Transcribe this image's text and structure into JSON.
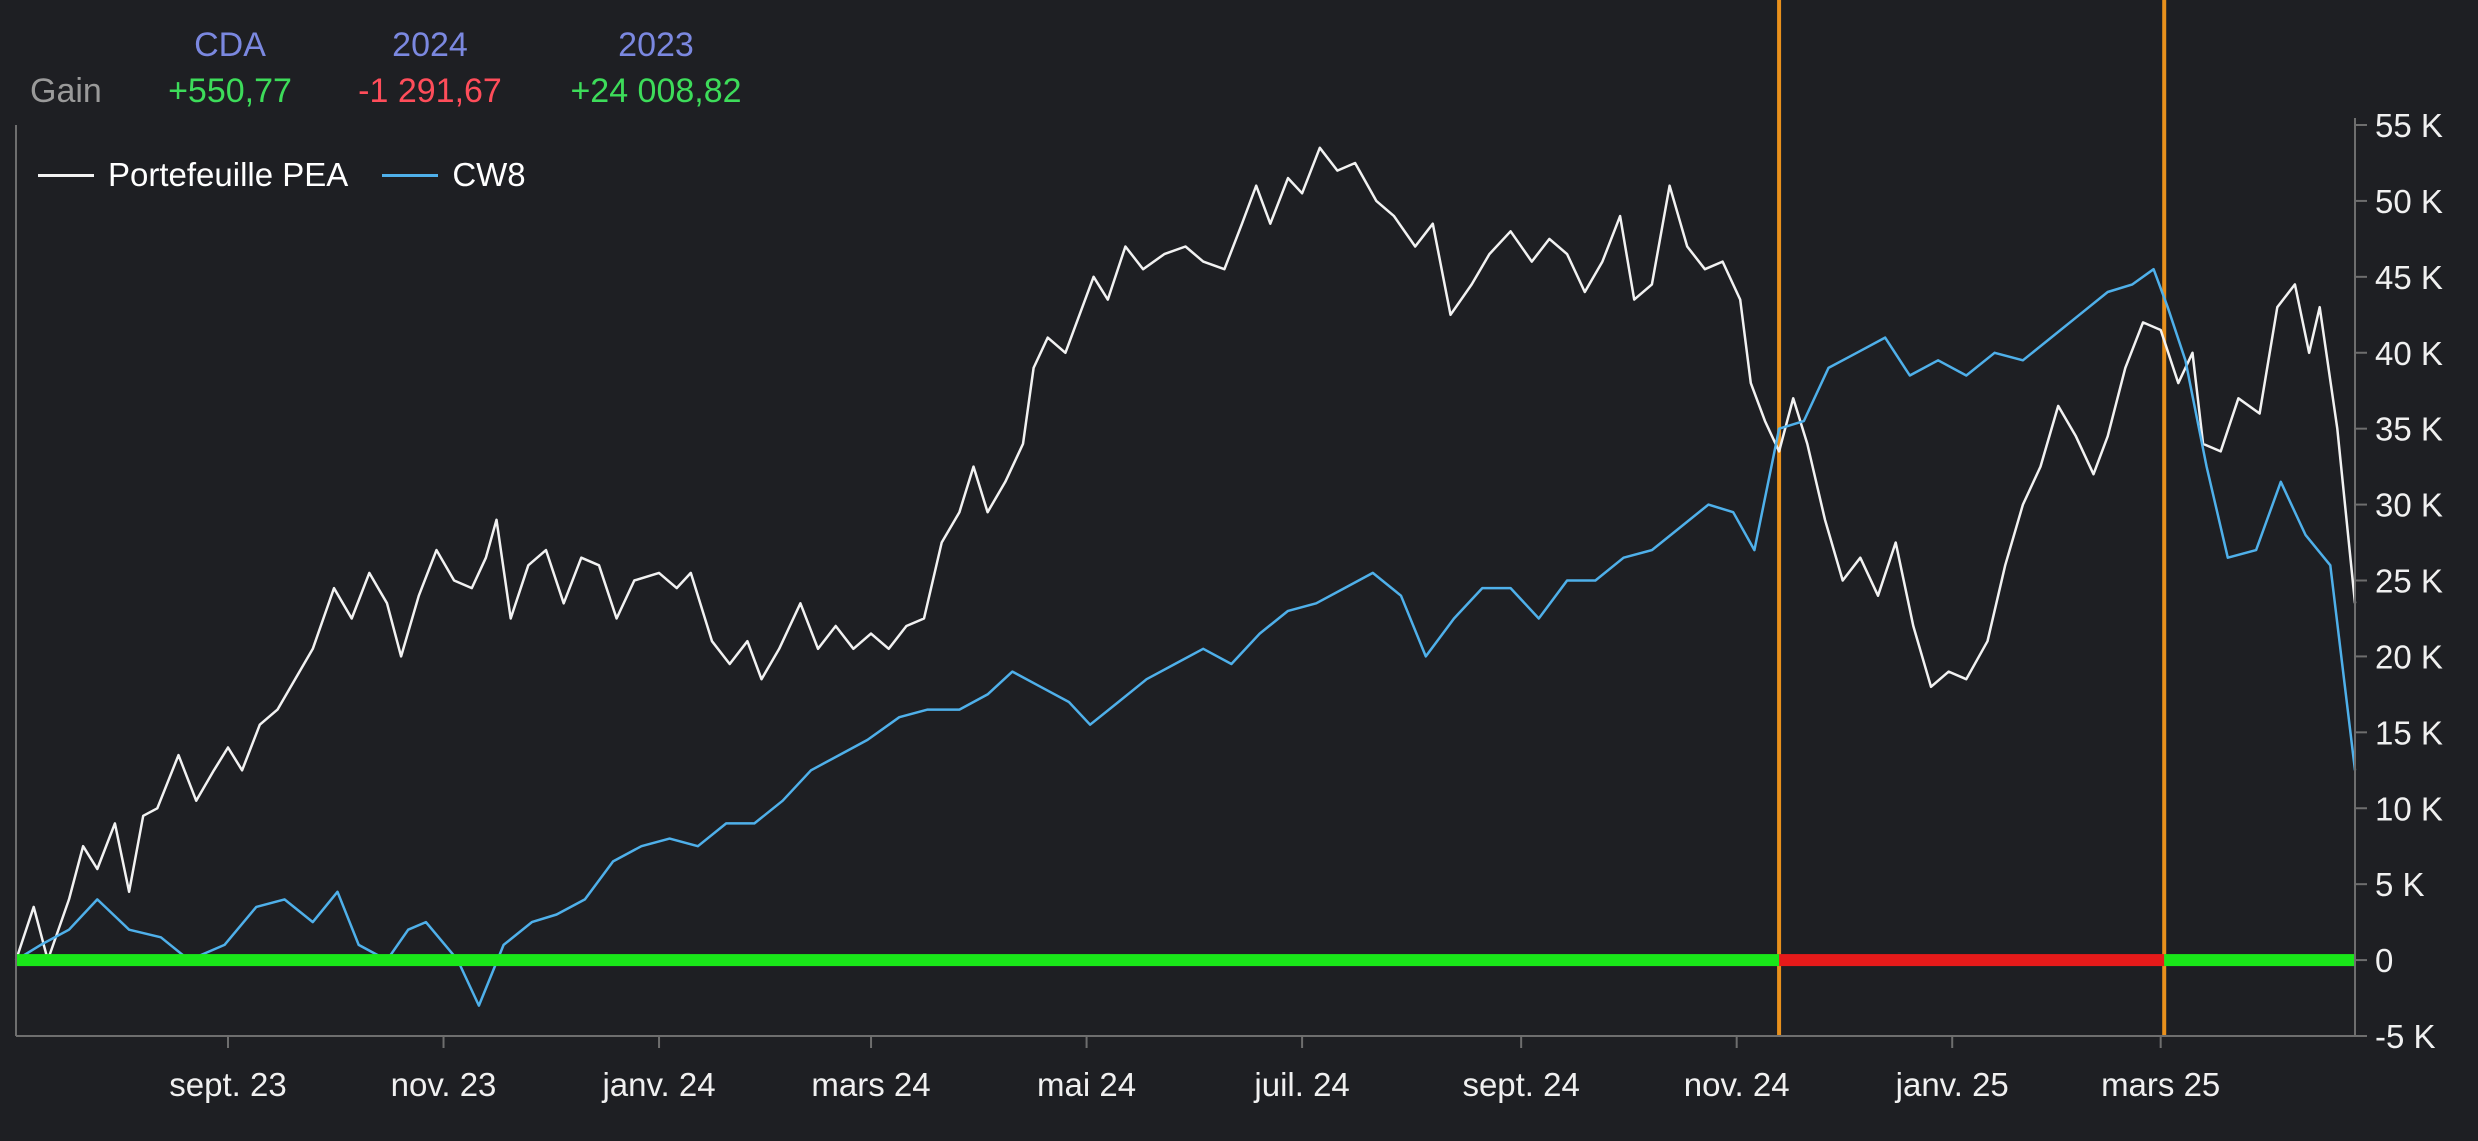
{
  "gain_summary": {
    "row_label": "Gain",
    "columns": [
      {
        "title": "CDA",
        "value": "+550,77",
        "status": "positive"
      },
      {
        "title": "2024",
        "value": "-1 291,67",
        "status": "negative"
      },
      {
        "title": "2023",
        "value": "+24 008,82",
        "status": "positive"
      }
    ]
  },
  "colors": {
    "background": "#1e1f23",
    "header_title": "#7b88e0",
    "positive": "#3ddc5a",
    "negative": "#ff4d5a",
    "portfolio_line": "#f2f2f2",
    "benchmark_line": "#4fb0ea",
    "event_marker": "#e8901c",
    "gain_bar_positive": "#19e619",
    "gain_bar_negative": "#e61a1a",
    "axis": "#6e6e6e",
    "tick_label": "#f0f0f0"
  },
  "chart_data": {
    "type": "line",
    "title": "",
    "xlabel": "",
    "ylabel": "",
    "x_range": [
      "2023-07-03",
      "2025-04-25"
    ],
    "ylim": [
      -5000,
      55000
    ],
    "y_ticks": [
      {
        "value": -5000,
        "label": "-5 K"
      },
      {
        "value": 0,
        "label": "0"
      },
      {
        "value": 5000,
        "label": "5 K"
      },
      {
        "value": 10000,
        "label": "10 K"
      },
      {
        "value": 15000,
        "label": "15 K"
      },
      {
        "value": 20000,
        "label": "20 K"
      },
      {
        "value": 25000,
        "label": "25 K"
      },
      {
        "value": 30000,
        "label": "30 K"
      },
      {
        "value": 35000,
        "label": "35 K"
      },
      {
        "value": 40000,
        "label": "40 K"
      },
      {
        "value": 45000,
        "label": "45 K"
      },
      {
        "value": 50000,
        "label": "50 K"
      },
      {
        "value": 55000,
        "label": "55 K"
      }
    ],
    "x_ticks": [
      {
        "date": "2023-09-01",
        "label": "sept. 23"
      },
      {
        "date": "2023-11-01",
        "label": "nov. 23"
      },
      {
        "date": "2024-01-01",
        "label": "janv. 24"
      },
      {
        "date": "2024-03-01",
        "label": "mars 24"
      },
      {
        "date": "2024-05-01",
        "label": "mai 24"
      },
      {
        "date": "2024-07-01",
        "label": "juil. 24"
      },
      {
        "date": "2024-09-01",
        "label": "sept. 24"
      },
      {
        "date": "2024-11-01",
        "label": "nov. 24"
      },
      {
        "date": "2025-01-01",
        "label": "janv. 25"
      },
      {
        "date": "2025-03-01",
        "label": "mars 25"
      }
    ],
    "legend": {
      "position": "top-left"
    },
    "grid": false,
    "event_markers": [
      "2024-11-13",
      "2025-03-02"
    ],
    "gain_band": [
      {
        "from": "2023-07-03",
        "to": "2024-11-13",
        "status": "positive"
      },
      {
        "from": "2024-11-13",
        "to": "2025-03-02",
        "status": "negative"
      },
      {
        "from": "2025-03-02",
        "to": "2025-04-25",
        "status": "positive"
      }
    ],
    "series": [
      {
        "name": "Portefeuille PEA",
        "color": "#f2f2f2",
        "points": [
          [
            "2023-07-03",
            0
          ],
          [
            "2023-07-08",
            3500
          ],
          [
            "2023-07-12",
            0
          ],
          [
            "2023-07-18",
            4000
          ],
          [
            "2023-07-22",
            7500
          ],
          [
            "2023-07-26",
            6000
          ],
          [
            "2023-07-31",
            9000
          ],
          [
            "2023-08-04",
            4500
          ],
          [
            "2023-08-08",
            9500
          ],
          [
            "2023-08-12",
            10000
          ],
          [
            "2023-08-18",
            13500
          ],
          [
            "2023-08-23",
            10500
          ],
          [
            "2023-08-28",
            12500
          ],
          [
            "2023-09-01",
            14000
          ],
          [
            "2023-09-05",
            12500
          ],
          [
            "2023-09-10",
            15500
          ],
          [
            "2023-09-15",
            16500
          ],
          [
            "2023-09-20",
            18500
          ],
          [
            "2023-09-25",
            20500
          ],
          [
            "2023-10-01",
            24500
          ],
          [
            "2023-10-06",
            22500
          ],
          [
            "2023-10-11",
            25500
          ],
          [
            "2023-10-16",
            23500
          ],
          [
            "2023-10-20",
            20000
          ],
          [
            "2023-10-25",
            24000
          ],
          [
            "2023-10-30",
            27000
          ],
          [
            "2023-11-04",
            25000
          ],
          [
            "2023-11-09",
            24500
          ],
          [
            "2023-11-13",
            26500
          ],
          [
            "2023-11-16",
            29000
          ],
          [
            "2023-11-20",
            22500
          ],
          [
            "2023-11-25",
            26000
          ],
          [
            "2023-11-30",
            27000
          ],
          [
            "2023-12-05",
            23500
          ],
          [
            "2023-12-10",
            26500
          ],
          [
            "2023-12-15",
            26000
          ],
          [
            "2023-12-20",
            22500
          ],
          [
            "2023-12-25",
            25000
          ],
          [
            "2024-01-01",
            25500
          ],
          [
            "2024-01-06",
            24500
          ],
          [
            "2024-01-10",
            25500
          ],
          [
            "2024-01-16",
            21000
          ],
          [
            "2024-01-21",
            19500
          ],
          [
            "2024-01-26",
            21000
          ],
          [
            "2024-01-30",
            18500
          ],
          [
            "2024-02-04",
            20500
          ],
          [
            "2024-02-10",
            23500
          ],
          [
            "2024-02-15",
            20500
          ],
          [
            "2024-02-20",
            22000
          ],
          [
            "2024-02-25",
            20500
          ],
          [
            "2024-03-01",
            21500
          ],
          [
            "2024-03-06",
            20500
          ],
          [
            "2024-03-11",
            22000
          ],
          [
            "2024-03-16",
            22500
          ],
          [
            "2024-03-21",
            27500
          ],
          [
            "2024-03-26",
            29500
          ],
          [
            "2024-03-30",
            32500
          ],
          [
            "2024-04-03",
            29500
          ],
          [
            "2024-04-08",
            31500
          ],
          [
            "2024-04-13",
            34000
          ],
          [
            "2024-04-16",
            39000
          ],
          [
            "2024-04-20",
            41000
          ],
          [
            "2024-04-25",
            40000
          ],
          [
            "2024-04-29",
            42500
          ],
          [
            "2024-05-03",
            45000
          ],
          [
            "2024-05-07",
            43500
          ],
          [
            "2024-05-12",
            47000
          ],
          [
            "2024-05-17",
            45500
          ],
          [
            "2024-05-23",
            46500
          ],
          [
            "2024-05-29",
            47000
          ],
          [
            "2024-06-03",
            46000
          ],
          [
            "2024-06-09",
            45500
          ],
          [
            "2024-06-14",
            48500
          ],
          [
            "2024-06-18",
            51000
          ],
          [
            "2024-06-22",
            48500
          ],
          [
            "2024-06-27",
            51500
          ],
          [
            "2024-07-01",
            50500
          ],
          [
            "2024-07-06",
            53500
          ],
          [
            "2024-07-11",
            52000
          ],
          [
            "2024-07-16",
            52500
          ],
          [
            "2024-07-22",
            50000
          ],
          [
            "2024-07-27",
            49000
          ],
          [
            "2024-08-02",
            47000
          ],
          [
            "2024-08-07",
            48500
          ],
          [
            "2024-08-12",
            42500
          ],
          [
            "2024-08-18",
            44500
          ],
          [
            "2024-08-23",
            46500
          ],
          [
            "2024-08-29",
            48000
          ],
          [
            "2024-09-04",
            46000
          ],
          [
            "2024-09-09",
            47500
          ],
          [
            "2024-09-14",
            46500
          ],
          [
            "2024-09-19",
            44000
          ],
          [
            "2024-09-24",
            46000
          ],
          [
            "2024-09-29",
            49000
          ],
          [
            "2024-10-03",
            43500
          ],
          [
            "2024-10-08",
            44500
          ],
          [
            "2024-10-13",
            51000
          ],
          [
            "2024-10-18",
            47000
          ],
          [
            "2024-10-23",
            45500
          ],
          [
            "2024-10-28",
            46000
          ],
          [
            "2024-11-02",
            43500
          ],
          [
            "2024-11-05",
            38000
          ],
          [
            "2024-11-09",
            35500
          ],
          [
            "2024-11-13",
            33500
          ],
          [
            "2024-11-17",
            37000
          ],
          [
            "2024-11-21",
            34000
          ],
          [
            "2024-11-26",
            29000
          ],
          [
            "2024-12-01",
            25000
          ],
          [
            "2024-12-06",
            26500
          ],
          [
            "2024-12-11",
            24000
          ],
          [
            "2024-12-16",
            27500
          ],
          [
            "2024-12-21",
            22000
          ],
          [
            "2024-12-26",
            18000
          ],
          [
            "2024-12-31",
            19000
          ],
          [
            "2025-01-05",
            18500
          ],
          [
            "2025-01-11",
            21000
          ],
          [
            "2025-01-16",
            26000
          ],
          [
            "2025-01-21",
            30000
          ],
          [
            "2025-01-26",
            32500
          ],
          [
            "2025-01-31",
            36500
          ],
          [
            "2025-02-05",
            34500
          ],
          [
            "2025-02-10",
            32000
          ],
          [
            "2025-02-14",
            34500
          ],
          [
            "2025-02-19",
            39000
          ],
          [
            "2025-02-24",
            42000
          ],
          [
            "2025-03-01",
            41500
          ],
          [
            "2025-03-06",
            38000
          ],
          [
            "2025-03-10",
            40000
          ],
          [
            "2025-03-13",
            34000
          ],
          [
            "2025-03-18",
            33500
          ],
          [
            "2025-03-23",
            37000
          ],
          [
            "2025-03-29",
            36000
          ],
          [
            "2025-04-03",
            43000
          ],
          [
            "2025-04-08",
            44500
          ],
          [
            "2025-04-12",
            40000
          ],
          [
            "2025-04-15",
            43000
          ],
          [
            "2025-04-20",
            35000
          ],
          [
            "2025-04-25",
            23500
          ]
        ]
      },
      {
        "name": "CW8",
        "color": "#4fb0ea",
        "points": [
          [
            "2023-07-03",
            0
          ],
          [
            "2023-07-10",
            1000
          ],
          [
            "2023-07-18",
            2000
          ],
          [
            "2023-07-26",
            4000
          ],
          [
            "2023-08-04",
            2000
          ],
          [
            "2023-08-13",
            1500
          ],
          [
            "2023-08-21",
            0
          ],
          [
            "2023-08-31",
            1000
          ],
          [
            "2023-09-09",
            3500
          ],
          [
            "2023-09-17",
            4000
          ],
          [
            "2023-09-25",
            2500
          ],
          [
            "2023-10-02",
            4500
          ],
          [
            "2023-10-08",
            1000
          ],
          [
            "2023-10-16",
            0
          ],
          [
            "2023-10-22",
            2000
          ],
          [
            "2023-10-27",
            2500
          ],
          [
            "2023-11-05",
            0
          ],
          [
            "2023-11-11",
            -3000
          ],
          [
            "2023-11-18",
            1000
          ],
          [
            "2023-11-26",
            2500
          ],
          [
            "2023-12-03",
            3000
          ],
          [
            "2023-12-11",
            4000
          ],
          [
            "2023-12-19",
            6500
          ],
          [
            "2023-12-27",
            7500
          ],
          [
            "2024-01-04",
            8000
          ],
          [
            "2024-01-12",
            7500
          ],
          [
            "2024-01-20",
            9000
          ],
          [
            "2024-01-28",
            9000
          ],
          [
            "2024-02-05",
            10500
          ],
          [
            "2024-02-13",
            12500
          ],
          [
            "2024-02-21",
            13500
          ],
          [
            "2024-02-29",
            14500
          ],
          [
            "2024-03-09",
            16000
          ],
          [
            "2024-03-17",
            16500
          ],
          [
            "2024-03-26",
            16500
          ],
          [
            "2024-04-03",
            17500
          ],
          [
            "2024-04-10",
            19000
          ],
          [
            "2024-04-18",
            18000
          ],
          [
            "2024-04-26",
            17000
          ],
          [
            "2024-05-02",
            15500
          ],
          [
            "2024-05-10",
            17000
          ],
          [
            "2024-05-18",
            18500
          ],
          [
            "2024-05-26",
            19500
          ],
          [
            "2024-06-03",
            20500
          ],
          [
            "2024-06-11",
            19500
          ],
          [
            "2024-06-19",
            21500
          ],
          [
            "2024-06-27",
            23000
          ],
          [
            "2024-07-05",
            23500
          ],
          [
            "2024-07-13",
            24500
          ],
          [
            "2024-07-21",
            25500
          ],
          [
            "2024-07-29",
            24000
          ],
          [
            "2024-08-05",
            20000
          ],
          [
            "2024-08-13",
            22500
          ],
          [
            "2024-08-21",
            24500
          ],
          [
            "2024-08-29",
            24500
          ],
          [
            "2024-09-06",
            22500
          ],
          [
            "2024-09-14",
            25000
          ],
          [
            "2024-09-22",
            25000
          ],
          [
            "2024-09-30",
            26500
          ],
          [
            "2024-10-08",
            27000
          ],
          [
            "2024-10-16",
            28500
          ],
          [
            "2024-10-24",
            30000
          ],
          [
            "2024-10-31",
            29500
          ],
          [
            "2024-11-06",
            27000
          ],
          [
            "2024-11-13",
            35000
          ],
          [
            "2024-11-20",
            35500
          ],
          [
            "2024-11-27",
            39000
          ],
          [
            "2024-12-05",
            40000
          ],
          [
            "2024-12-13",
            41000
          ],
          [
            "2024-12-20",
            38500
          ],
          [
            "2024-12-28",
            39500
          ],
          [
            "2025-01-05",
            38500
          ],
          [
            "2025-01-13",
            40000
          ],
          [
            "2025-01-21",
            39500
          ],
          [
            "2025-01-29",
            41000
          ],
          [
            "2025-02-06",
            42500
          ],
          [
            "2025-02-14",
            44000
          ],
          [
            "2025-02-21",
            44500
          ],
          [
            "2025-02-27",
            45500
          ],
          [
            "2025-03-03",
            43000
          ],
          [
            "2025-03-08",
            39500
          ],
          [
            "2025-03-14",
            32500
          ],
          [
            "2025-03-20",
            26500
          ],
          [
            "2025-03-28",
            27000
          ],
          [
            "2025-04-04",
            31500
          ],
          [
            "2025-04-11",
            28000
          ],
          [
            "2025-04-18",
            26000
          ],
          [
            "2025-04-25",
            12500
          ]
        ]
      }
    ]
  }
}
